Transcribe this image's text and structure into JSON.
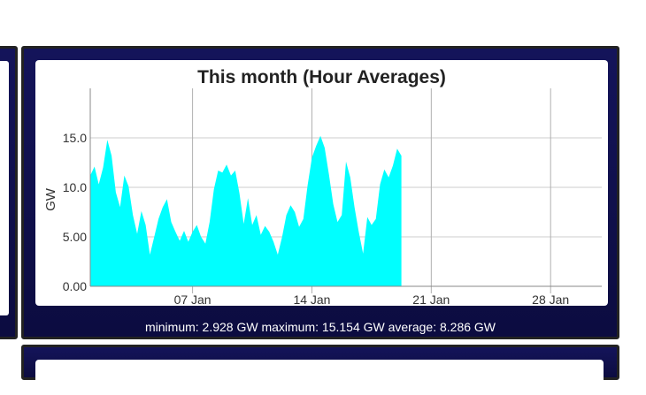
{
  "chart_data": {
    "type": "area",
    "title": "This month (Hour Averages)",
    "ylabel": "GW",
    "xlabel": "",
    "ylim": [
      0,
      20
    ],
    "xlim": [
      "2025-01-01",
      "2025-01-31"
    ],
    "y_ticks": [
      "0.00",
      "5.00",
      "10.0",
      "15.0"
    ],
    "x_ticks": [
      {
        "date": "2025-01-07",
        "label": "07 Jan"
      },
      {
        "date": "2025-01-14",
        "label": "14 Jan"
      },
      {
        "date": "2025-01-21",
        "label": "21 Jan"
      },
      {
        "date": "2025-01-28",
        "label": "28 Jan"
      }
    ],
    "grid": true,
    "fill_color": "#00ffff",
    "series": [
      {
        "points": [
          [
            "2025-01-01 00:00",
            11.2
          ],
          [
            "2025-01-01 06:00",
            12.1
          ],
          [
            "2025-01-01 12:00",
            10.3
          ],
          [
            "2025-01-01 18:00",
            12.0
          ],
          [
            "2025-01-02 00:00",
            14.8
          ],
          [
            "2025-01-02 06:00",
            13.2
          ],
          [
            "2025-01-02 12:00",
            9.5
          ],
          [
            "2025-01-02 18:00",
            8.0
          ],
          [
            "2025-01-03 00:00",
            11.2
          ],
          [
            "2025-01-03 06:00",
            10.1
          ],
          [
            "2025-01-03 12:00",
            7.2
          ],
          [
            "2025-01-03 18:00",
            5.3
          ],
          [
            "2025-01-04 00:00",
            7.6
          ],
          [
            "2025-01-04 06:00",
            6.2
          ],
          [
            "2025-01-04 12:00",
            3.2
          ],
          [
            "2025-01-04 18:00",
            5.0
          ],
          [
            "2025-01-05 00:00",
            6.8
          ],
          [
            "2025-01-05 06:00",
            8.0
          ],
          [
            "2025-01-05 12:00",
            8.8
          ],
          [
            "2025-01-05 18:00",
            6.5
          ],
          [
            "2025-01-06 00:00",
            5.5
          ],
          [
            "2025-01-06 06:00",
            4.6
          ],
          [
            "2025-01-06 12:00",
            5.6
          ],
          [
            "2025-01-06 18:00",
            4.5
          ],
          [
            "2025-01-07 00:00",
            5.5
          ],
          [
            "2025-01-07 06:00",
            6.2
          ],
          [
            "2025-01-07 12:00",
            5.0
          ],
          [
            "2025-01-07 18:00",
            4.3
          ],
          [
            "2025-01-08 00:00",
            6.5
          ],
          [
            "2025-01-08 06:00",
            9.8
          ],
          [
            "2025-01-08 12:00",
            11.7
          ],
          [
            "2025-01-08 18:00",
            11.5
          ],
          [
            "2025-01-09 00:00",
            12.3
          ],
          [
            "2025-01-09 06:00",
            11.2
          ],
          [
            "2025-01-09 12:00",
            11.7
          ],
          [
            "2025-01-09 18:00",
            9.4
          ],
          [
            "2025-01-10 00:00",
            6.3
          ],
          [
            "2025-01-10 06:00",
            8.9
          ],
          [
            "2025-01-10 12:00",
            6.2
          ],
          [
            "2025-01-10 18:00",
            7.2
          ],
          [
            "2025-01-11 00:00",
            5.2
          ],
          [
            "2025-01-11 06:00",
            6.1
          ],
          [
            "2025-01-11 12:00",
            5.5
          ],
          [
            "2025-01-11 18:00",
            4.5
          ],
          [
            "2025-01-12 00:00",
            3.2
          ],
          [
            "2025-01-12 06:00",
            5.0
          ],
          [
            "2025-01-12 12:00",
            7.2
          ],
          [
            "2025-01-12 18:00",
            8.2
          ],
          [
            "2025-01-13 00:00",
            7.5
          ],
          [
            "2025-01-13 06:00",
            6.0
          ],
          [
            "2025-01-13 12:00",
            6.8
          ],
          [
            "2025-01-13 18:00",
            10.2
          ],
          [
            "2025-01-14 00:00",
            13.0
          ],
          [
            "2025-01-14 06:00",
            14.2
          ],
          [
            "2025-01-14 12:00",
            15.2
          ],
          [
            "2025-01-14 18:00",
            14.0
          ],
          [
            "2025-01-15 00:00",
            11.3
          ],
          [
            "2025-01-15 06:00",
            8.3
          ],
          [
            "2025-01-15 12:00",
            6.5
          ],
          [
            "2025-01-15 18:00",
            7.2
          ],
          [
            "2025-01-16 00:00",
            12.6
          ],
          [
            "2025-01-16 06:00",
            11.0
          ],
          [
            "2025-01-16 12:00",
            8.0
          ],
          [
            "2025-01-16 18:00",
            5.5
          ],
          [
            "2025-01-17 00:00",
            3.3
          ],
          [
            "2025-01-17 06:00",
            7.0
          ],
          [
            "2025-01-17 12:00",
            6.2
          ],
          [
            "2025-01-17 18:00",
            6.8
          ],
          [
            "2025-01-18 00:00",
            10.3
          ],
          [
            "2025-01-18 06:00",
            11.8
          ],
          [
            "2025-01-18 12:00",
            11.0
          ],
          [
            "2025-01-18 18:00",
            12.2
          ],
          [
            "2025-01-19 00:00",
            13.9
          ],
          [
            "2025-01-19 06:00",
            13.2
          ]
        ]
      }
    ]
  },
  "footer": {
    "text": "minimum: 2.928 GW maximum: 15.154 GW average: 8.286 GW"
  },
  "colors": {
    "panel_bg": "#10104e",
    "panel_border": "#222222",
    "area_fill": "#00ffff",
    "grid": "#cccccc"
  }
}
